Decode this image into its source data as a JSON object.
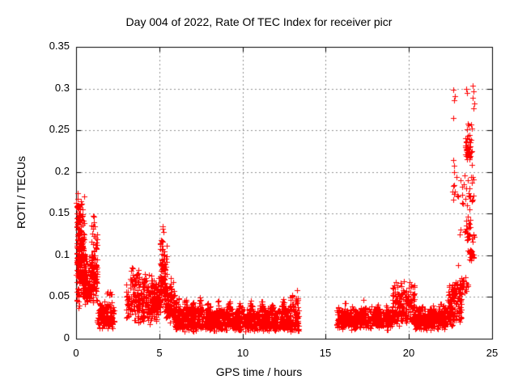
{
  "chart_data": {
    "type": "scatter",
    "title": "Day 004 of 2022, Rate Of TEC Index for receiver picr",
    "xlabel": "GPS time / hours",
    "ylabel": "ROTI / TECUs",
    "xlim": [
      0,
      25
    ],
    "ylim": [
      0,
      0.35
    ],
    "x_ticks": [
      {
        "v": 0,
        "label": "0"
      },
      {
        "v": 5,
        "label": "5"
      },
      {
        "v": 10,
        "label": "10"
      },
      {
        "v": 15,
        "label": "15"
      },
      {
        "v": 20,
        "label": "20"
      },
      {
        "v": 25,
        "label": "25"
      }
    ],
    "y_ticks": [
      {
        "v": 0,
        "label": "0"
      },
      {
        "v": 0.05,
        "label": "0.05"
      },
      {
        "v": 0.1,
        "label": "0.1"
      },
      {
        "v": 0.15,
        "label": "0.15"
      },
      {
        "v": 0.2,
        "label": "0.2"
      },
      {
        "v": 0.25,
        "label": "0.25"
      },
      {
        "v": 0.3,
        "label": "0.3"
      },
      {
        "v": 0.35,
        "label": "0.35"
      }
    ],
    "grid": {
      "show": true,
      "style": "dashed",
      "color": "#909090",
      "x_lines": [
        5,
        10,
        15,
        20
      ],
      "y_lines": [
        0.05,
        0.1,
        0.15,
        0.2,
        0.25,
        0.3
      ]
    },
    "marker": {
      "shape": "plus",
      "color": "#ff0000",
      "size": 7
    },
    "legend": {
      "show": false
    },
    "axis_color": "#000000",
    "seed": 20220104,
    "clusters": [
      [
        0.02,
        0.48,
        240,
        0.03,
        0.1,
        0.175
      ],
      [
        0.45,
        0.92,
        100,
        0.035,
        0.055,
        0.105
      ],
      [
        0.9,
        1.28,
        100,
        0.035,
        0.07,
        0.158
      ],
      [
        1.28,
        2.28,
        150,
        0.012,
        0.02,
        0.048
      ],
      [
        1.75,
        2.15,
        6,
        0.05,
        0.055,
        0.062
      ],
      [
        3.0,
        3.75,
        100,
        0.018,
        0.045,
        0.095
      ],
      [
        3.7,
        4.5,
        120,
        0.015,
        0.04,
        0.085
      ],
      [
        4.5,
        5.08,
        130,
        0.02,
        0.045,
        0.078
      ],
      [
        5.05,
        5.45,
        100,
        0.03,
        0.06,
        0.135
      ],
      [
        5.4,
        5.95,
        90,
        0.018,
        0.035,
        0.08
      ],
      [
        5.9,
        13.4,
        950,
        0.008,
        0.016,
        0.038
      ],
      [
        15.62,
        19.05,
        430,
        0.01,
        0.02,
        0.04
      ],
      [
        19.0,
        20.35,
        180,
        0.014,
        0.03,
        0.075
      ],
      [
        20.3,
        22.35,
        280,
        0.01,
        0.018,
        0.042
      ],
      [
        22.3,
        23.15,
        130,
        0.015,
        0.03,
        0.075
      ],
      [
        22.55,
        22.85,
        22,
        0.048,
        0.06,
        0.075
      ],
      [
        23.4,
        23.8,
        42,
        0.205,
        0.225,
        0.247
      ],
      [
        22.6,
        23.9,
        26,
        0.15,
        0.175,
        0.2
      ],
      [
        23.3,
        23.92,
        26,
        0.112,
        0.13,
        0.15
      ],
      [
        23.5,
        23.9,
        24,
        0.093,
        0.1,
        0.108
      ],
      [
        23.0,
        23.55,
        30,
        0.05,
        0.062,
        0.082
      ]
    ],
    "bumps": [
      [
        6.1,
        0.18,
        22,
        0.025,
        0.06
      ],
      [
        6.55,
        0.18,
        22,
        0.025,
        0.055
      ],
      [
        7.0,
        0.18,
        22,
        0.025,
        0.052
      ],
      [
        7.45,
        0.18,
        22,
        0.025,
        0.055
      ],
      [
        7.95,
        0.18,
        22,
        0.025,
        0.05
      ],
      [
        8.55,
        0.18,
        22,
        0.025,
        0.048
      ],
      [
        9.2,
        0.18,
        22,
        0.025,
        0.05
      ],
      [
        9.85,
        0.18,
        22,
        0.025,
        0.046
      ],
      [
        10.5,
        0.18,
        22,
        0.025,
        0.048
      ],
      [
        11.15,
        0.18,
        22,
        0.025,
        0.05
      ],
      [
        11.8,
        0.18,
        22,
        0.025,
        0.046
      ],
      [
        12.45,
        0.18,
        22,
        0.025,
        0.05
      ],
      [
        12.95,
        0.15,
        20,
        0.028,
        0.058
      ],
      [
        13.25,
        0.12,
        16,
        0.028,
        0.062
      ],
      [
        16.2,
        0.2,
        18,
        0.022,
        0.046
      ],
      [
        17.25,
        0.2,
        18,
        0.022,
        0.052
      ],
      [
        18.15,
        0.2,
        18,
        0.022,
        0.046
      ],
      [
        18.65,
        0.15,
        14,
        0.022,
        0.042
      ],
      [
        20.6,
        0.15,
        12,
        0.02,
        0.045
      ],
      [
        21.3,
        0.15,
        12,
        0.02,
        0.042
      ],
      [
        21.9,
        0.15,
        12,
        0.02,
        0.045
      ]
    ],
    "outliers": [
      [
        22.68,
        0.299
      ],
      [
        22.74,
        0.291
      ],
      [
        22.7,
        0.286
      ],
      [
        23.42,
        0.3
      ],
      [
        23.47,
        0.295
      ],
      [
        23.82,
        0.303
      ],
      [
        23.88,
        0.297
      ],
      [
        23.85,
        0.289
      ],
      [
        23.93,
        0.282
      ],
      [
        23.9,
        0.276
      ],
      [
        22.66,
        0.265
      ],
      [
        23.52,
        0.258
      ],
      [
        23.58,
        0.256
      ],
      [
        23.72,
        0.257
      ],
      [
        23.48,
        0.251
      ],
      [
        23.77,
        0.252
      ],
      [
        22.67,
        0.214
      ],
      [
        22.71,
        0.207
      ],
      [
        22.69,
        0.2
      ],
      [
        23.35,
        0.196
      ],
      [
        23.55,
        0.19
      ],
      [
        23.3,
        0.185
      ],
      [
        23.45,
        0.18
      ],
      [
        23.6,
        0.175
      ],
      [
        23.4,
        0.168
      ],
      [
        23.5,
        0.16
      ],
      [
        23.65,
        0.155
      ],
      [
        22.95,
        0.088
      ],
      [
        23.1,
        0.131
      ],
      [
        23.05,
        0.125
      ],
      [
        0.12,
        0.175
      ],
      [
        0.1,
        0.168
      ],
      [
        5.22,
        0.135
      ],
      [
        5.25,
        0.128
      ]
    ]
  }
}
